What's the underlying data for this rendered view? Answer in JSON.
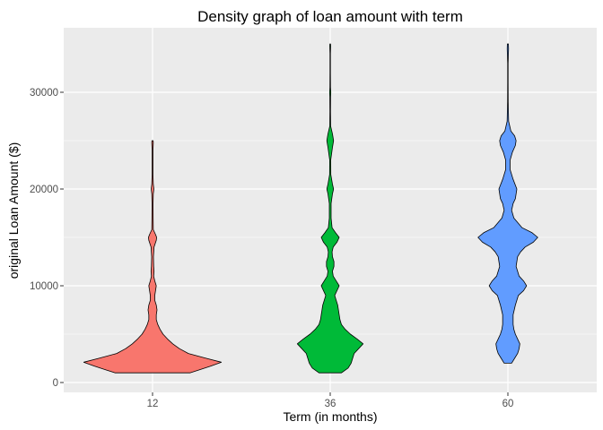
{
  "chart_data": {
    "type": "violin",
    "title": "Density graph of loan amount with term",
    "xlabel": "Term (in months)",
    "ylabel": "original Loan Amount ($)",
    "categories": [
      "12",
      "36",
      "60"
    ],
    "yticks": [
      0,
      10000,
      20000,
      30000
    ],
    "ylim": [
      -750,
      36500
    ],
    "grid": true,
    "legend": "none",
    "panel_color": "#EBEBEB",
    "grid_color": "#FFFFFF",
    "series": [
      {
        "category": "12",
        "color": "#F8766D",
        "profile": [
          [
            1000,
            0.5
          ],
          [
            1300,
            0.62
          ],
          [
            1700,
            0.78
          ],
          [
            2100,
            0.92
          ],
          [
            2500,
            0.72
          ],
          [
            3000,
            0.48
          ],
          [
            3500,
            0.36
          ],
          [
            4000,
            0.27
          ],
          [
            4500,
            0.2
          ],
          [
            5000,
            0.14
          ],
          [
            5500,
            0.1
          ],
          [
            6000,
            0.07
          ],
          [
            6500,
            0.05
          ],
          [
            7000,
            0.05
          ],
          [
            7500,
            0.06
          ],
          [
            8000,
            0.05
          ],
          [
            8500,
            0.03
          ],
          [
            9000,
            0.03
          ],
          [
            9500,
            0.04
          ],
          [
            10000,
            0.05
          ],
          [
            10500,
            0.03
          ],
          [
            11000,
            0.015
          ],
          [
            11500,
            0.02
          ],
          [
            12000,
            0.015
          ],
          [
            13000,
            0.012
          ],
          [
            14000,
            0.02
          ],
          [
            14700,
            0.05
          ],
          [
            15000,
            0.055
          ],
          [
            15300,
            0.04
          ],
          [
            15800,
            0.01
          ],
          [
            17000,
            0.008
          ],
          [
            18500,
            0.007
          ],
          [
            19500,
            0.01
          ],
          [
            20000,
            0.018
          ],
          [
            20500,
            0.01
          ],
          [
            21500,
            0.006
          ],
          [
            23000,
            0.006
          ],
          [
            24000,
            0.006
          ],
          [
            24800,
            0.01
          ],
          [
            25000,
            0.008
          ]
        ]
      },
      {
        "category": "36",
        "color": "#00BA38",
        "profile": [
          [
            1000,
            0.15
          ],
          [
            1500,
            0.24
          ],
          [
            2000,
            0.28
          ],
          [
            2500,
            0.3
          ],
          [
            3000,
            0.32
          ],
          [
            3500,
            0.38
          ],
          [
            4000,
            0.44
          ],
          [
            4500,
            0.36
          ],
          [
            5000,
            0.27
          ],
          [
            5500,
            0.2
          ],
          [
            6000,
            0.15
          ],
          [
            6500,
            0.13
          ],
          [
            7000,
            0.12
          ],
          [
            7500,
            0.11
          ],
          [
            8000,
            0.1
          ],
          [
            8500,
            0.08
          ],
          [
            9000,
            0.06
          ],
          [
            9500,
            0.09
          ],
          [
            10000,
            0.12
          ],
          [
            10500,
            0.08
          ],
          [
            11000,
            0.04
          ],
          [
            11500,
            0.03
          ],
          [
            12000,
            0.05
          ],
          [
            12500,
            0.05
          ],
          [
            13000,
            0.03
          ],
          [
            13500,
            0.025
          ],
          [
            14000,
            0.04
          ],
          [
            14500,
            0.09
          ],
          [
            15000,
            0.12
          ],
          [
            15500,
            0.07
          ],
          [
            16000,
            0.025
          ],
          [
            17000,
            0.012
          ],
          [
            18500,
            0.012
          ],
          [
            19500,
            0.03
          ],
          [
            20000,
            0.045
          ],
          [
            20500,
            0.03
          ],
          [
            21500,
            0.008
          ],
          [
            23000,
            0.007
          ],
          [
            24300,
            0.03
          ],
          [
            25000,
            0.045
          ],
          [
            25700,
            0.03
          ],
          [
            26500,
            0.006
          ],
          [
            28000,
            0.004
          ],
          [
            29500,
            0.005
          ],
          [
            30000,
            0.008
          ],
          [
            30500,
            0.004
          ],
          [
            32000,
            0.003
          ],
          [
            34000,
            0.003
          ],
          [
            34800,
            0.006
          ],
          [
            35000,
            0.004
          ]
        ]
      },
      {
        "category": "60",
        "color": "#619CFF",
        "profile": [
          [
            2000,
            0.05
          ],
          [
            2500,
            0.09
          ],
          [
            3000,
            0.13
          ],
          [
            3500,
            0.15
          ],
          [
            4000,
            0.16
          ],
          [
            4500,
            0.13
          ],
          [
            5000,
            0.1
          ],
          [
            5500,
            0.08
          ],
          [
            6000,
            0.07
          ],
          [
            7000,
            0.07
          ],
          [
            8000,
            0.1
          ],
          [
            9000,
            0.14
          ],
          [
            9500,
            0.21
          ],
          [
            10000,
            0.25
          ],
          [
            10500,
            0.21
          ],
          [
            11000,
            0.15
          ],
          [
            12000,
            0.11
          ],
          [
            13000,
            0.13
          ],
          [
            13500,
            0.17
          ],
          [
            14000,
            0.23
          ],
          [
            14500,
            0.34
          ],
          [
            15000,
            0.4
          ],
          [
            15500,
            0.32
          ],
          [
            16000,
            0.19
          ],
          [
            17000,
            0.08
          ],
          [
            17800,
            0.05
          ],
          [
            18500,
            0.07
          ],
          [
            19000,
            0.1
          ],
          [
            20000,
            0.12
          ],
          [
            21000,
            0.07
          ],
          [
            22000,
            0.03
          ],
          [
            23000,
            0.03
          ],
          [
            23800,
            0.06
          ],
          [
            24500,
            0.1
          ],
          [
            25000,
            0.11
          ],
          [
            25500,
            0.09
          ],
          [
            26000,
            0.04
          ],
          [
            27000,
            0.01
          ],
          [
            29000,
            0.004
          ],
          [
            31000,
            0.003
          ],
          [
            33000,
            0.003
          ],
          [
            34500,
            0.009
          ],
          [
            35000,
            0.007
          ]
        ]
      }
    ]
  }
}
